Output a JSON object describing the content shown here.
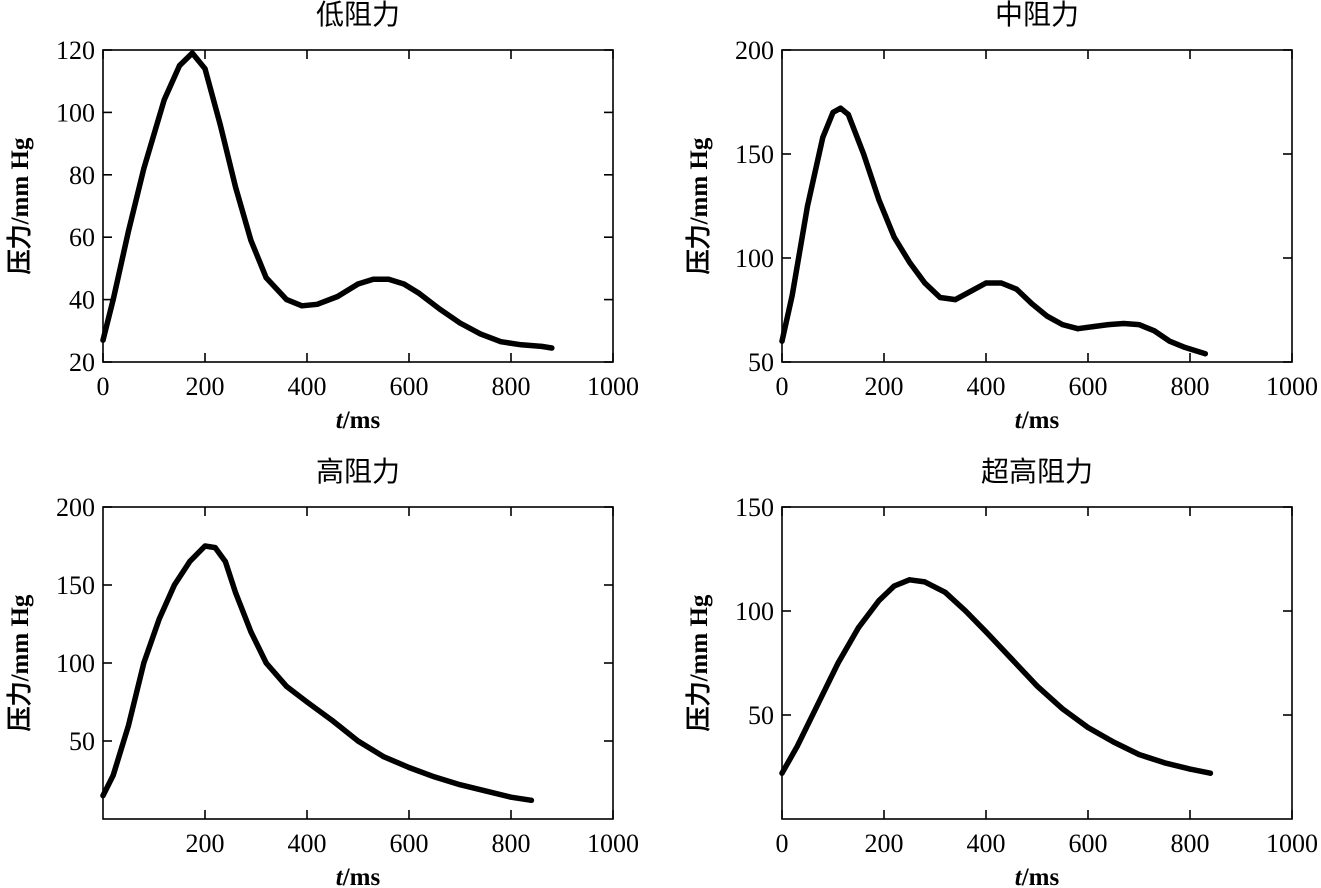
{
  "chart_data": [
    {
      "type": "line",
      "title": "低阻力",
      "xlabel_italic": "t",
      "xlabel_unit": "/ms",
      "ylabel": "压力/mm Hg",
      "xlim": [
        0,
        1000
      ],
      "ylim": [
        20,
        120
      ],
      "x_ticks": [
        0,
        200,
        400,
        600,
        800,
        1000
      ],
      "y_ticks": [
        20,
        40,
        60,
        80,
        100,
        120
      ],
      "grid": false,
      "series": [
        {
          "x": [
            0,
            20,
            50,
            80,
            120,
            150,
            175,
            200,
            230,
            260,
            290,
            320,
            360,
            390,
            420,
            460,
            500,
            530,
            560,
            590,
            620,
            660,
            700,
            740,
            780,
            820,
            860,
            880
          ],
          "y": [
            27,
            40,
            62,
            82,
            104,
            115,
            119,
            114,
            96,
            76,
            59,
            47,
            40,
            38,
            38.5,
            41,
            45,
            46.5,
            46.5,
            45,
            42,
            37,
            32.5,
            29,
            26.5,
            25.5,
            25,
            24.5
          ]
        }
      ]
    },
    {
      "type": "line",
      "title": "中阻力",
      "xlabel_italic": "t",
      "xlabel_unit": "/ms",
      "ylabel": "压力/mm Hg",
      "xlim": [
        0,
        1000
      ],
      "ylim": [
        50,
        200
      ],
      "x_ticks": [
        0,
        200,
        400,
        600,
        800,
        1000
      ],
      "y_ticks": [
        50,
        100,
        150,
        200
      ],
      "grid": false,
      "series": [
        {
          "x": [
            0,
            20,
            50,
            80,
            100,
            115,
            130,
            160,
            190,
            220,
            250,
            280,
            310,
            340,
            370,
            400,
            430,
            460,
            490,
            520,
            550,
            580,
            610,
            640,
            670,
            700,
            730,
            760,
            790,
            830
          ],
          "y": [
            60,
            82,
            125,
            158,
            170,
            172,
            169,
            150,
            128,
            110,
            98,
            88,
            81,
            80,
            84,
            88,
            88,
            85,
            78,
            72,
            68,
            66,
            67,
            68,
            68.5,
            68,
            65,
            60,
            57,
            54
          ]
        }
      ]
    },
    {
      "type": "line",
      "title": "高阻力",
      "xlabel_italic": "t",
      "xlabel_unit": "/ms",
      "ylabel": "压力/mm Hg",
      "xlim": [
        0,
        1000
      ],
      "ylim": [
        0,
        200
      ],
      "x_ticks": [
        200,
        400,
        600,
        800,
        1000
      ],
      "y_ticks": [
        50,
        100,
        150,
        200
      ],
      "grid": false,
      "series": [
        {
          "x": [
            0,
            20,
            50,
            80,
            110,
            140,
            170,
            200,
            220,
            240,
            260,
            290,
            320,
            360,
            400,
            450,
            500,
            550,
            600,
            650,
            700,
            750,
            800,
            840
          ],
          "y": [
            15,
            28,
            60,
            100,
            128,
            150,
            165,
            175,
            174,
            165,
            145,
            120,
            100,
            85,
            75,
            63,
            50,
            40,
            33,
            27,
            22,
            18,
            14,
            12
          ]
        }
      ]
    },
    {
      "type": "line",
      "title": "超高阻力",
      "xlabel_italic": "t",
      "xlabel_unit": "/ms",
      "ylabel": "压力/mm Hg",
      "xlim": [
        0,
        1000
      ],
      "ylim": [
        0,
        150
      ],
      "x_ticks": [
        0,
        200,
        400,
        600,
        800,
        1000
      ],
      "y_ticks": [
        50,
        100,
        150
      ],
      "grid": false,
      "series": [
        {
          "x": [
            0,
            30,
            70,
            110,
            150,
            190,
            220,
            250,
            280,
            320,
            360,
            400,
            450,
            500,
            550,
            600,
            650,
            700,
            750,
            800,
            840
          ],
          "y": [
            22,
            35,
            55,
            75,
            92,
            105,
            112,
            115,
            114,
            109,
            100,
            90,
            77,
            64,
            53,
            44,
            37,
            31,
            27,
            24,
            22
          ]
        }
      ]
    }
  ]
}
